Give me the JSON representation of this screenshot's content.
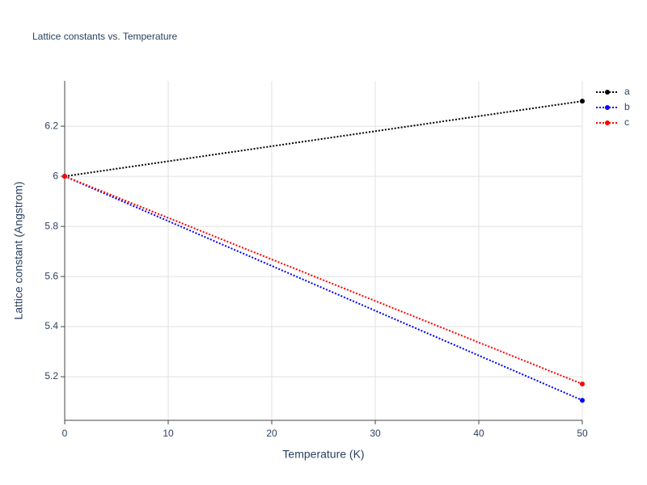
{
  "chart_data": {
    "type": "line",
    "title": "Lattice constants vs. Temperature",
    "x_label": "Temperature (K)",
    "y_label": "Lattice constant (Angstrom)",
    "x": [
      0,
      50
    ],
    "series": [
      {
        "name": "a",
        "color": "#000000",
        "values": [
          6.0,
          6.3
        ]
      },
      {
        "name": "b",
        "color": "#0000ff",
        "values": [
          6.0,
          5.106
        ]
      },
      {
        "name": "c",
        "color": "#ff0000",
        "values": [
          6.0,
          5.171
        ]
      }
    ],
    "xlim": [
      0,
      50
    ],
    "xticks": [
      0,
      10,
      20,
      30,
      40,
      50
    ],
    "ylim": [
      5.026,
      6.381
    ],
    "yticks": [
      5.2,
      5.4,
      5.6,
      5.8,
      6,
      6.2
    ],
    "grid": true,
    "legend": "top-right",
    "line_style": "dotted"
  }
}
